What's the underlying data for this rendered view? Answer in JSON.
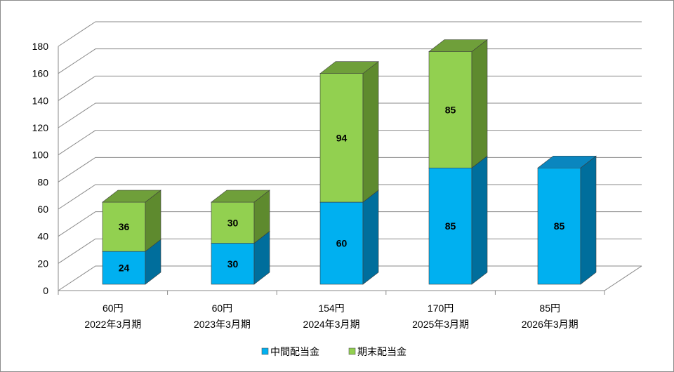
{
  "chart_data": {
    "type": "bar",
    "stacked": true,
    "three_d": true,
    "categories": [
      "2022年3月期",
      "2023年3月期",
      "2024年3月期",
      "2025年3月期",
      "2026年3月期"
    ],
    "totals_labels": [
      "60円",
      "60円",
      "154円",
      "170円",
      "85円"
    ],
    "series": [
      {
        "name": "中間配当金",
        "values": [
          24,
          30,
          60,
          85,
          85
        ],
        "color": "#00b0f0",
        "side": "#006e9c",
        "top": "#0a86bf"
      },
      {
        "name": "期末配当金",
        "values": [
          36,
          30,
          94,
          85,
          null
        ],
        "color": "#92d050",
        "side": "#5e8a2e",
        "top": "#6f9f3a"
      }
    ],
    "yticks": [
      0,
      20,
      40,
      60,
      80,
      100,
      120,
      140,
      160,
      180
    ],
    "ylim": [
      0,
      180
    ],
    "grid": true,
    "legend": "bottom",
    "title": "",
    "xlabel": "",
    "ylabel": ""
  }
}
